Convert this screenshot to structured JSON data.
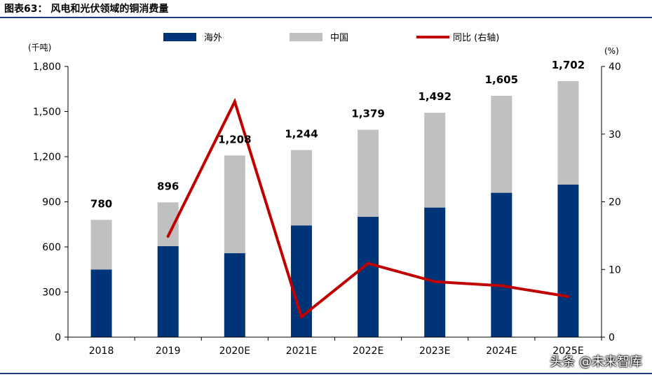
{
  "title": "图表63：  风电和光伏领域的铜消费量",
  "watermark": "头条 @未来智库",
  "chart_data": {
    "type": "bar",
    "stacked": true,
    "categories": [
      "2018",
      "2019",
      "2020E",
      "2021E",
      "2022E",
      "2023E",
      "2024E",
      "2025E"
    ],
    "series": [
      {
        "name": "海外",
        "type": "bar",
        "axis": "left",
        "color": "#003478",
        "values": [
          450,
          605,
          558,
          743,
          800,
          862,
          960,
          1015
        ]
      },
      {
        "name": "中国",
        "type": "bar",
        "axis": "left",
        "color": "#c0c0c0",
        "values": [
          330,
          291,
          650,
          501,
          579,
          630,
          645,
          687
        ]
      },
      {
        "name": "同比 (右轴)",
        "type": "line",
        "axis": "right",
        "color": "#c00000",
        "values": [
          null,
          14.9,
          34.8,
          3.0,
          10.9,
          8.2,
          7.6,
          6.0
        ]
      }
    ],
    "totals": [
      780,
      896,
      1208,
      1244,
      1379,
      1492,
      1605,
      1702
    ],
    "total_labels": [
      "780",
      "896",
      "1,208",
      "1,244",
      "1,379",
      "1,492",
      "1,605",
      "1,702"
    ],
    "left_axis": {
      "unit": "(千吨)",
      "min": 0,
      "max": 1800,
      "ticks": [
        0,
        300,
        600,
        900,
        1200,
        1500,
        1800
      ],
      "tick_labels": [
        "0",
        "300",
        "600",
        "900",
        "1,200",
        "1,500",
        "1,800"
      ]
    },
    "right_axis": {
      "unit": "(%)",
      "min": 0,
      "max": 40,
      "ticks": [
        0,
        10,
        20,
        30,
        40
      ],
      "tick_labels": [
        "0",
        "10",
        "20",
        "30",
        "40"
      ]
    },
    "legend": {
      "position": "top"
    },
    "grid": false
  }
}
